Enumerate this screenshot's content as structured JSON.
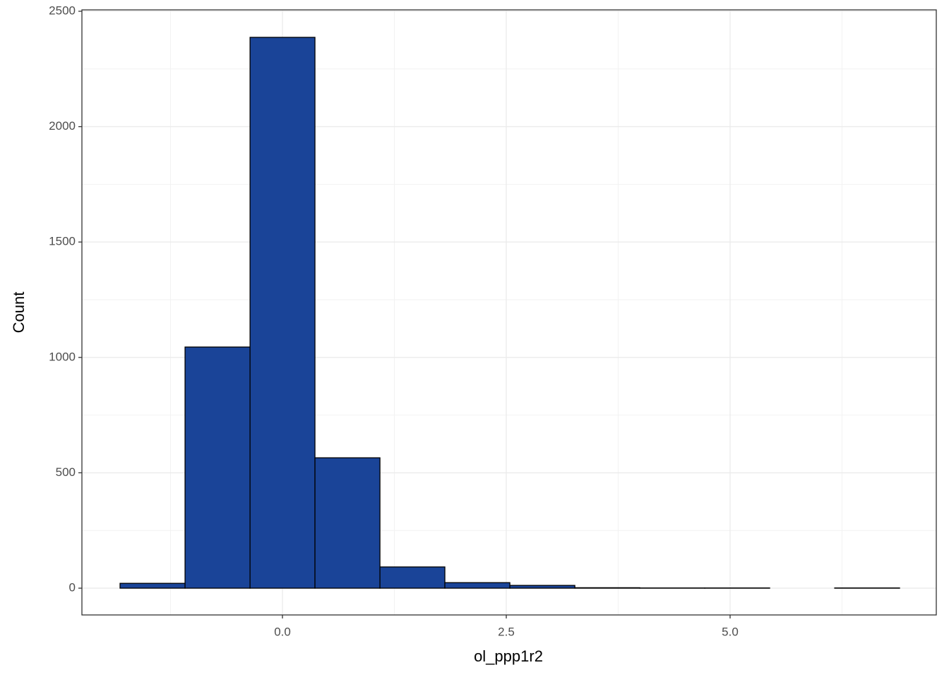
{
  "chart_data": {
    "type": "histogram",
    "x_label": "ol_ppp1r2",
    "y_label": "Count",
    "bins": [
      -1.814,
      -1.088,
      -0.362,
      0.363,
      1.089,
      1.814,
      2.54,
      3.266,
      3.991,
      4.717,
      5.442,
      6.168,
      6.893
    ],
    "counts": [
      21,
      1045,
      2387,
      565,
      92,
      24,
      12,
      2,
      1,
      1,
      0,
      1
    ],
    "color": "#1a4498",
    "edge_color": "#000000",
    "xlim": [
      -2.24,
      7.303
    ],
    "xticks": [
      {
        "value": 0,
        "label": "0.0"
      },
      {
        "value": 2.5,
        "label": "2.5"
      },
      {
        "value": 5,
        "label": "5.0"
      }
    ],
    "ylim": [
      -116,
      2506
    ],
    "yticks": [
      0,
      500,
      1000,
      1500,
      2000,
      2500
    ],
    "grid": true,
    "minor_grid": true
  }
}
